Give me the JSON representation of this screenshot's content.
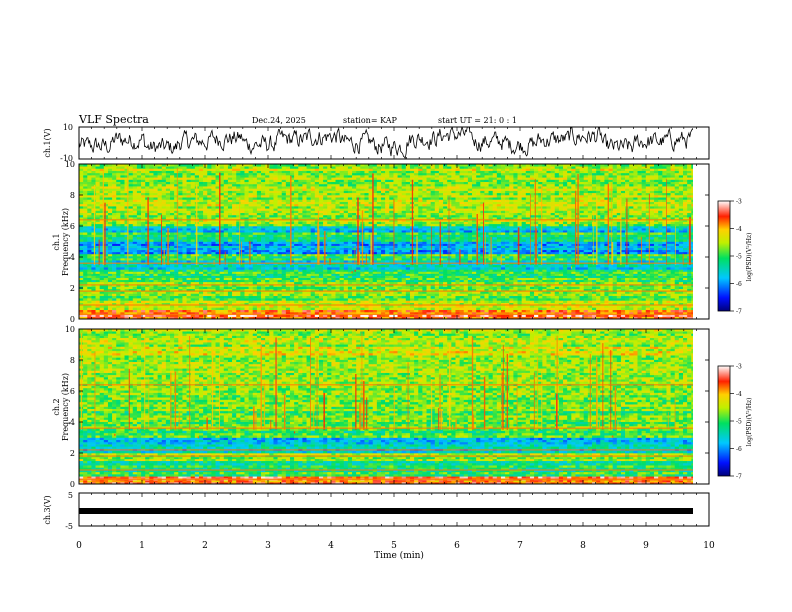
{
  "header": {
    "title": "VLF Spectra",
    "date": "Dec.24, 2025",
    "station": "station= KAP",
    "start_ut": "start  UT =   21: 0  : 1"
  },
  "chart_data": [
    {
      "type": "line",
      "name": "ch1-waveform",
      "ylabel": "ch.1(V)",
      "ylim": [
        -10,
        10
      ],
      "ytick_labels": [
        "10",
        "-10"
      ],
      "x_range_min": [
        0,
        9.85
      ],
      "description_values_v": [
        -2,
        2,
        -3,
        1,
        3,
        -1,
        2,
        4,
        0,
        -2,
        3,
        5,
        1,
        -1,
        2,
        4,
        -3,
        1,
        2,
        3
      ]
    },
    {
      "type": "heatmap",
      "name": "ch1-spectrogram",
      "ylabel_line1": "ch.1",
      "ylabel_line2": "Frequency (kHz)",
      "ylim": [
        0,
        10
      ],
      "y_ticks": [
        "0",
        "2",
        "4",
        "6",
        "8",
        "10"
      ],
      "color_scale": {
        "label": "log(PSD)(V²/Hz)",
        "range": [
          -7,
          -3
        ],
        "ticks": [
          "-3",
          "-4",
          "-5",
          "-6",
          "-7"
        ]
      },
      "bands": [
        {
          "from_khz": 0,
          "to_khz": 0.6,
          "level": -3.6
        },
        {
          "from_khz": 0.6,
          "to_khz": 1.2,
          "level": -4.6
        },
        {
          "from_khz": 1.2,
          "to_khz": 2.4,
          "level": -4.7
        },
        {
          "from_khz": 2.4,
          "to_khz": 3.2,
          "level": -5.0
        },
        {
          "from_khz": 3.2,
          "to_khz": 3.8,
          "level": -5.7
        },
        {
          "from_khz": 3.8,
          "to_khz": 4.2,
          "level": -4.9
        },
        {
          "from_khz": 4.2,
          "to_khz": 5.0,
          "level": -5.8
        },
        {
          "from_khz": 5.0,
          "to_khz": 5.6,
          "level": -5.2
        },
        {
          "from_khz": 5.6,
          "to_khz": 6.0,
          "level": -5.6
        },
        {
          "from_khz": 6.0,
          "to_khz": 10.0,
          "level": -4.6
        }
      ]
    },
    {
      "type": "heatmap",
      "name": "ch2-spectrogram",
      "ylabel_line1": "ch.2",
      "ylabel_line2": "Frequency (kHz)",
      "ylim": [
        0,
        10
      ],
      "y_ticks": [
        "0",
        "2",
        "4",
        "6",
        "8",
        "10"
      ],
      "color_scale": {
        "label": "log(PSD)(V²/Hz)",
        "range": [
          -7,
          -3
        ],
        "ticks": [
          "-3",
          "-4",
          "-5",
          "-6",
          "-7"
        ]
      },
      "bands": [
        {
          "from_khz": 0,
          "to_khz": 0.5,
          "level": -3.7
        },
        {
          "from_khz": 0.5,
          "to_khz": 1.5,
          "level": -5.1
        },
        {
          "from_khz": 1.5,
          "to_khz": 2.0,
          "level": -4.6
        },
        {
          "from_khz": 2.0,
          "to_khz": 3.0,
          "level": -5.6
        },
        {
          "from_khz": 3.0,
          "to_khz": 3.6,
          "level": -5.0
        },
        {
          "from_khz": 3.6,
          "to_khz": 5.0,
          "level": -4.8
        },
        {
          "from_khz": 5.0,
          "to_khz": 6.2,
          "level": -4.7
        },
        {
          "from_khz": 6.2,
          "to_khz": 10.0,
          "level": -4.5
        }
      ]
    },
    {
      "type": "line",
      "name": "ch3-waveform",
      "ylabel": "ch.3(V)",
      "ylim": [
        -5,
        5
      ],
      "ytick_labels": [
        "5",
        "-5"
      ],
      "band_v": [
        -0.6,
        0.6
      ],
      "x_range_min": [
        0,
        9.85
      ]
    }
  ],
  "x_axis": {
    "label": "Time (min)",
    "range_min": [
      0,
      10
    ],
    "ticks": [
      "0",
      "1",
      "2",
      "3",
      "4",
      "5",
      "6",
      "7",
      "8",
      "9",
      "10"
    ]
  }
}
